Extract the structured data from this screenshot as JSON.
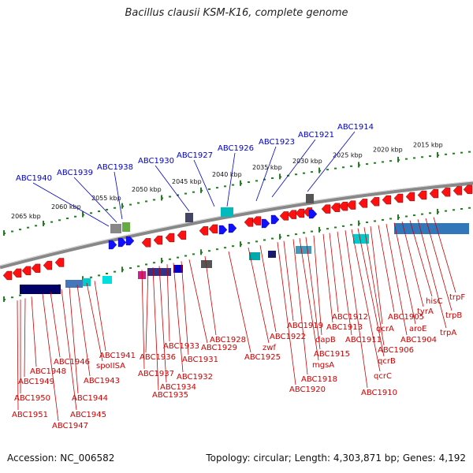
{
  "title": "Bacillus clausii KSM-K16, complete genome",
  "footer": {
    "accession": "Accession: NC_006582",
    "topology": "Topology: circular; Length: 4,303,871 bp; Genes: 4,192"
  },
  "colors": {
    "forward_label": "#0000cc",
    "reverse_label": "#cc0000",
    "backbone": "#888888",
    "tick": "#2a7a2a"
  },
  "kbp_labels": [
    "2065 kbp",
    "2060 kbp",
    "2055 kbp",
    "2050 kbp",
    "2045 kbp",
    "2040 kbp",
    "2035 kbp",
    "2030 kbp",
    "2025 kbp",
    "2020 kbp",
    "2015 kbp"
  ],
  "forward_genes": [
    "ABC1940",
    "ABC1939",
    "ABC1938",
    "ABC1930",
    "ABC1927",
    "ABC1926",
    "ABC1923",
    "ABC1921",
    "ABC1914"
  ],
  "reverse_genes": [
    "ABC1951",
    "ABC1950",
    "ABC1949",
    "ABC1948",
    "ABC1947",
    "ABC1946",
    "ABC1945",
    "ABC1944",
    "ABC1943",
    "spoIISA",
    "ABC1941",
    "ABC1937",
    "ABC1936",
    "ABC1935",
    "ABC1934",
    "ABC1933",
    "ABC1932",
    "ABC1931",
    "ABC1929",
    "ABC1928",
    "ABC1925",
    "zwf",
    "ABC1922",
    "ABC1920",
    "ABC1919",
    "ABC1918",
    "mgsA",
    "ABC1915",
    "dapB",
    "ABC1913",
    "ABC1912",
    "ABC1911",
    "ABC1910",
    "qcrC",
    "qcrB",
    "ABC1906",
    "qcrA",
    "ABC1905",
    "ABC1904",
    "aroE",
    "tyrA",
    "hisC",
    "trpA",
    "trpB",
    "trpF"
  ]
}
